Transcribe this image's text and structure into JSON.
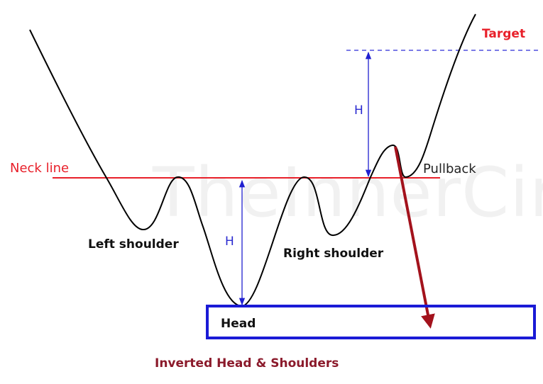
{
  "labels": {
    "neck_line": "Neck line",
    "target": "Target",
    "pullback": "Pullback",
    "height_left": "H",
    "height_right": "H",
    "left_shoulder": "Left shoulder",
    "right_shoulder": "Right shoulder",
    "head": "Head",
    "caption": "Inverted Head & Shoulders",
    "watermark": "TheInnerCircle"
  },
  "colors": {
    "price_line": "#000000",
    "neck_line": "#e8202a",
    "measure": "#2020d0",
    "head_box": "#1a1ad6",
    "pullback_arrow": "#a3121c",
    "caption": "#8b1a2b",
    "target_text": "#e8202a"
  }
}
